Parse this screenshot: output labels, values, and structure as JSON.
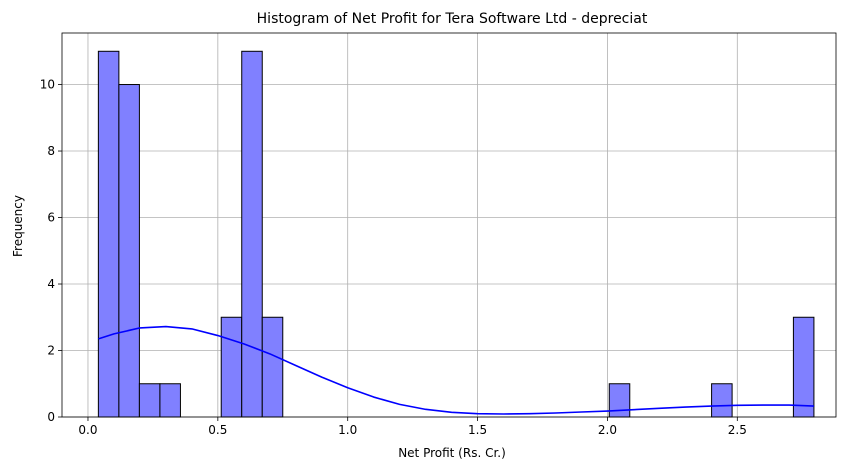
{
  "chart_data": {
    "type": "bar",
    "title": "Histogram of Net Profit for Tera Software Ltd - depreciat",
    "xlabel": "Net Profit (Rs. Cr.)",
    "ylabel": "Frequency",
    "xlim": [
      -0.1,
      2.88
    ],
    "ylim": [
      0,
      11.55
    ],
    "xticks": [
      0.0,
      0.5,
      1.0,
      1.5,
      2.0,
      2.5
    ],
    "xtick_labels": [
      "0.0",
      "0.5",
      "1.0",
      "1.5",
      "2.0",
      "2.5"
    ],
    "yticks": [
      0,
      2,
      4,
      6,
      8,
      10
    ],
    "ytick_labels": [
      "0",
      "2",
      "4",
      "6",
      "8",
      "10"
    ],
    "grid": true,
    "bins": [
      {
        "x0": 0.04,
        "x1": 0.119,
        "count": 11
      },
      {
        "x0": 0.119,
        "x1": 0.198,
        "count": 10
      },
      {
        "x0": 0.198,
        "x1": 0.277,
        "count": 1
      },
      {
        "x0": 0.277,
        "x1": 0.356,
        "count": 1
      },
      {
        "x0": 0.513,
        "x1": 0.592,
        "count": 3
      },
      {
        "x0": 0.592,
        "x1": 0.671,
        "count": 11
      },
      {
        "x0": 0.671,
        "x1": 0.75,
        "count": 3
      },
      {
        "x0": 2.007,
        "x1": 2.086,
        "count": 1
      },
      {
        "x0": 2.401,
        "x1": 2.48,
        "count": 1
      },
      {
        "x0": 2.716,
        "x1": 2.795,
        "count": 3
      }
    ],
    "kde": {
      "x": [
        0.04,
        0.1,
        0.2,
        0.3,
        0.4,
        0.5,
        0.6,
        0.7,
        0.8,
        0.9,
        1.0,
        1.1,
        1.2,
        1.3,
        1.4,
        1.5,
        1.6,
        1.7,
        1.8,
        1.9,
        2.0,
        2.1,
        2.2,
        2.3,
        2.4,
        2.5,
        2.6,
        2.7,
        2.795
      ],
      "y": [
        2.35,
        2.5,
        2.68,
        2.72,
        2.65,
        2.45,
        2.2,
        1.9,
        1.55,
        1.2,
        0.88,
        0.6,
        0.38,
        0.23,
        0.14,
        0.1,
        0.09,
        0.1,
        0.12,
        0.15,
        0.18,
        0.22,
        0.26,
        0.3,
        0.33,
        0.35,
        0.36,
        0.36,
        0.33
      ]
    },
    "colors": {
      "bar_fill": "#8080ff",
      "bar_edge": "#000000",
      "kde_line": "#0000ff",
      "grid": "#b0b0b0"
    }
  }
}
